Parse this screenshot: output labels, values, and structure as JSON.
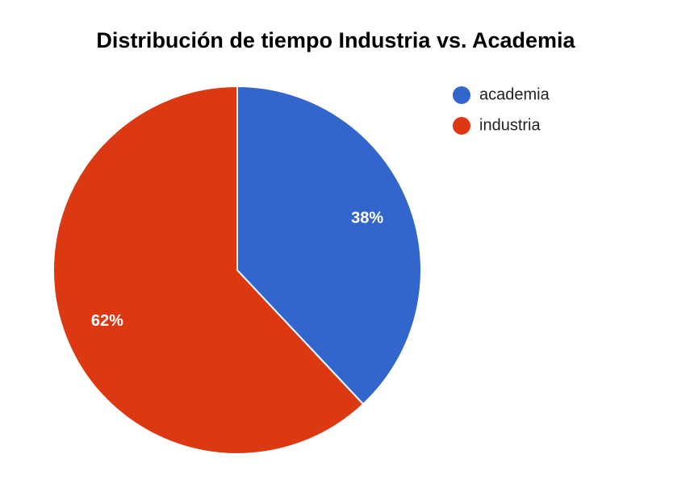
{
  "chart_data": {
    "type": "pie",
    "title": "Distribución de tiempo Industria vs. Academia",
    "categories": [
      "academia",
      "industria"
    ],
    "values": [
      38,
      62
    ],
    "value_labels": [
      "38%",
      "62%"
    ],
    "colors": [
      "#3366cc",
      "#dc3912"
    ],
    "legend": "right"
  }
}
